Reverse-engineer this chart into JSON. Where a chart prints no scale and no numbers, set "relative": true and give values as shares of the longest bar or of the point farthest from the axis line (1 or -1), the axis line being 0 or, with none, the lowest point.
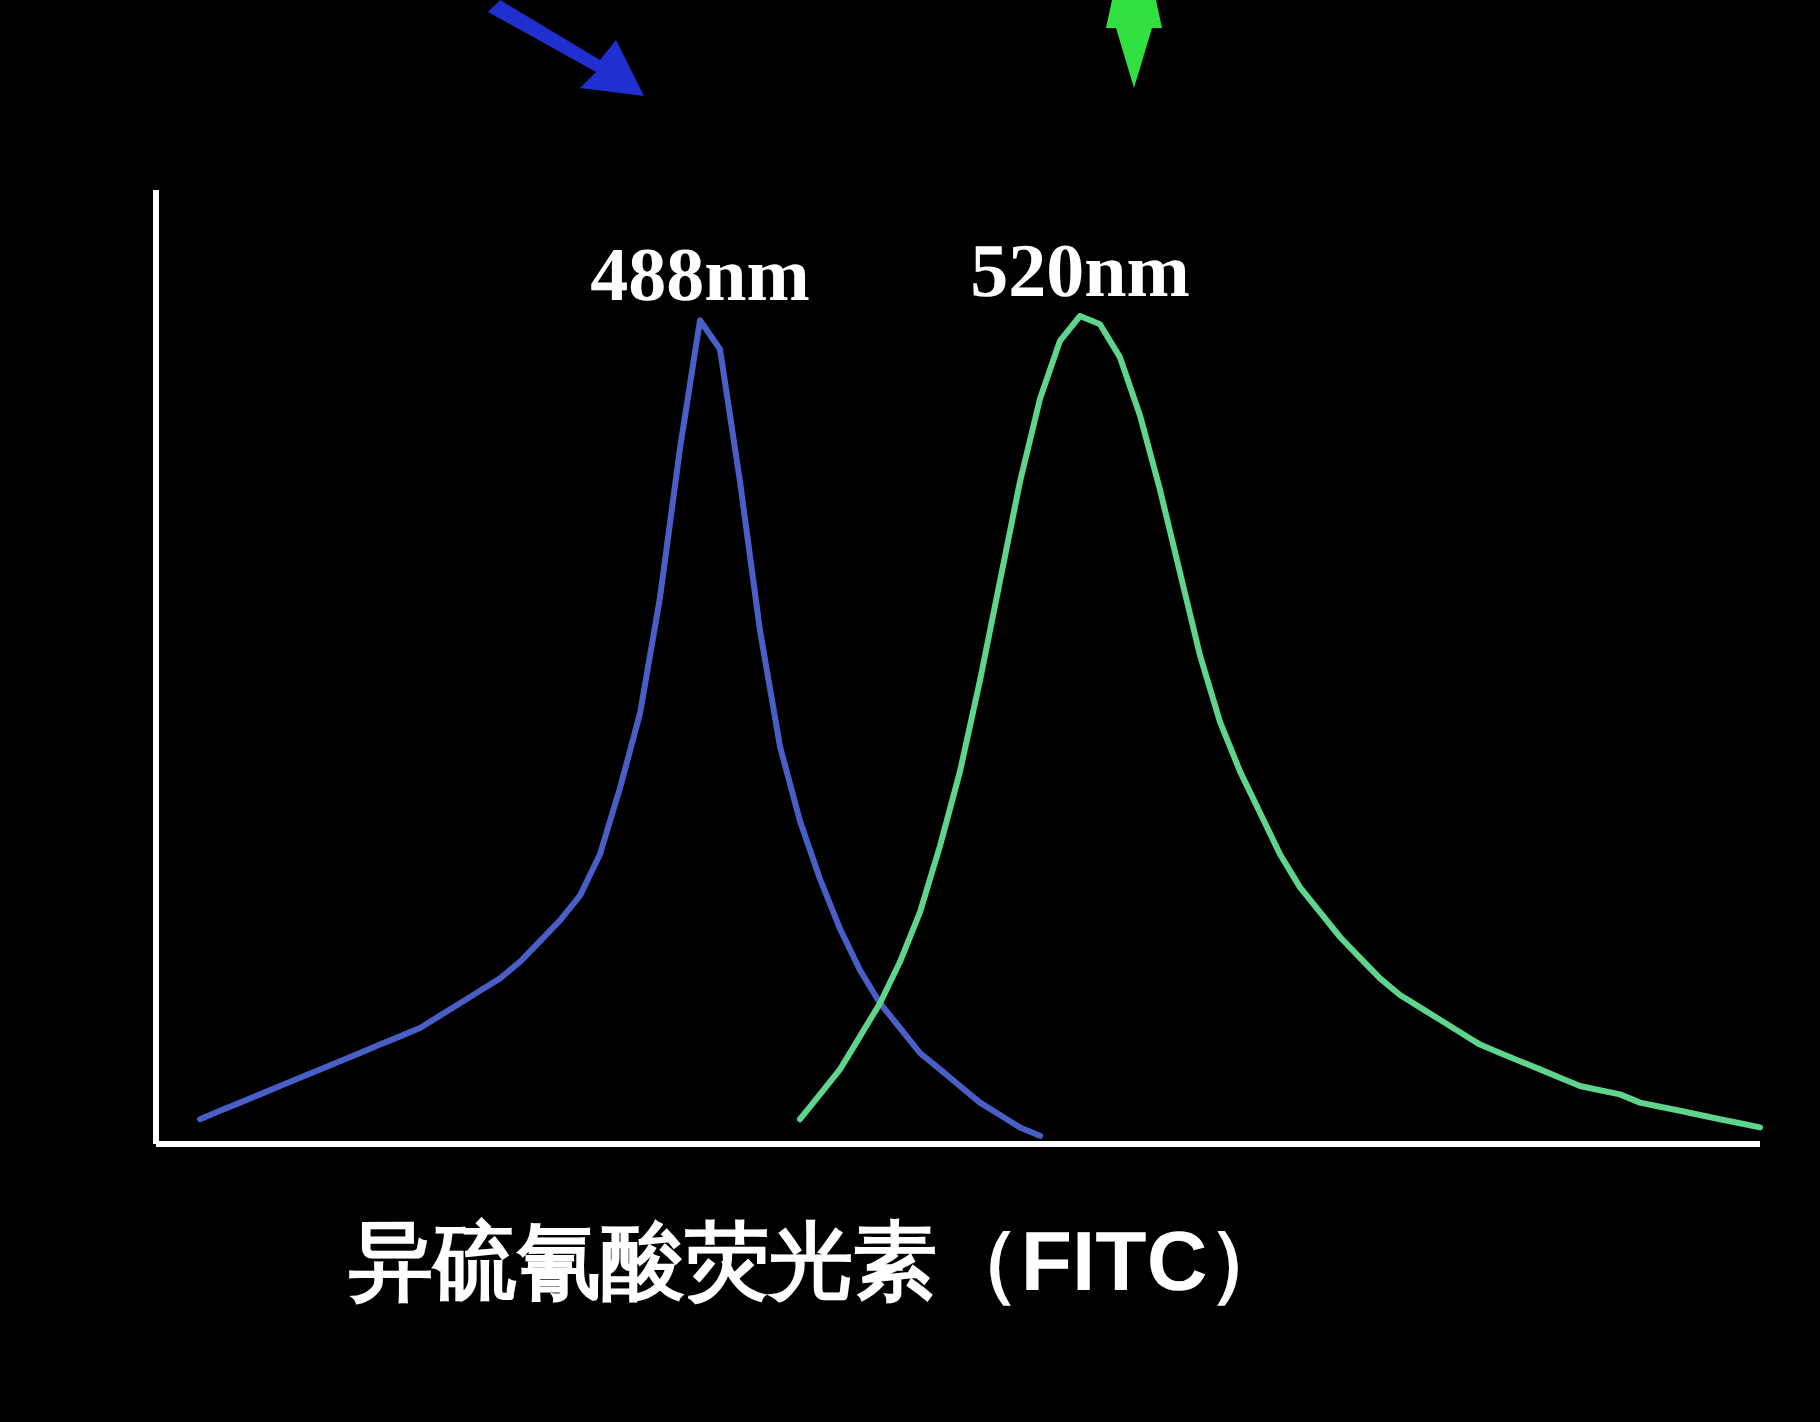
{
  "chart_data": {
    "type": "line",
    "relative": true,
    "xlabel": "异硫氰酸荧光素（FITC）",
    "annotations": [
      "488nm",
      "520nm"
    ],
    "categories": [
      null,
      null,
      null,
      null,
      null,
      null,
      null,
      null,
      null,
      null,
      null,
      null,
      null,
      null,
      null,
      null,
      null,
      null,
      null,
      null,
      null,
      null,
      null,
      null,
      null,
      null,
      null,
      null,
      null,
      null,
      null,
      null,
      null,
      null,
      null,
      null,
      null,
      null,
      null,
      null,
      null,
      null,
      null,
      null,
      null,
      null,
      null,
      null,
      null,
      null,
      null,
      null,
      null,
      null,
      null,
      null,
      null,
      null,
      null,
      null,
      null,
      null,
      null,
      null,
      null,
      null,
      null,
      null,
      null,
      null,
      null,
      null,
      null,
      null,
      null,
      null,
      null,
      null,
      null,
      null
    ],
    "series": [
      {
        "color": "#4a5ec8",
        "values": [
          null,
          0.03,
          0.04,
          0.05,
          0.06,
          0.07,
          0.08,
          0.09,
          0.1,
          0.11,
          0.12,
          0.13,
          0.14,
          0.155,
          0.17,
          0.185,
          0.2,
          0.22,
          0.245,
          0.27,
          0.3,
          0.35,
          0.43,
          0.52,
          0.66,
          0.84,
          0.995,
          0.96,
          0.8,
          0.62,
          0.48,
          0.39,
          0.32,
          0.26,
          0.21,
          0.17,
          0.14,
          0.11,
          0.09,
          0.07,
          0.05,
          0.035,
          0.02,
          0.01,
          null,
          null,
          null,
          null,
          null,
          null,
          null,
          null,
          null,
          null,
          null,
          null,
          null,
          null,
          null,
          null,
          null,
          null,
          null,
          null,
          null,
          null,
          null,
          null,
          null,
          null,
          null,
          null,
          null,
          null,
          null,
          null,
          null,
          null,
          null,
          null
        ]
      },
      {
        "color": "#5ed48c",
        "values": [
          null,
          null,
          null,
          null,
          null,
          null,
          null,
          null,
          null,
          null,
          null,
          null,
          null,
          null,
          null,
          null,
          null,
          null,
          null,
          null,
          null,
          null,
          null,
          null,
          null,
          null,
          null,
          null,
          null,
          null,
          null,
          0.03,
          0.06,
          0.09,
          0.13,
          0.17,
          0.22,
          0.28,
          0.36,
          0.45,
          0.56,
          0.68,
          0.8,
          0.9,
          0.97,
          1.0,
          0.99,
          0.95,
          0.88,
          0.79,
          0.69,
          0.59,
          0.51,
          0.45,
          0.4,
          0.35,
          0.31,
          0.28,
          0.25,
          0.225,
          0.2,
          0.18,
          0.165,
          0.15,
          0.135,
          0.12,
          0.11,
          0.1,
          0.09,
          0.08,
          0.07,
          0.065,
          0.06,
          0.05,
          0.045,
          0.04,
          0.035,
          0.03,
          0.025,
          0.02
        ]
      }
    ]
  }
}
